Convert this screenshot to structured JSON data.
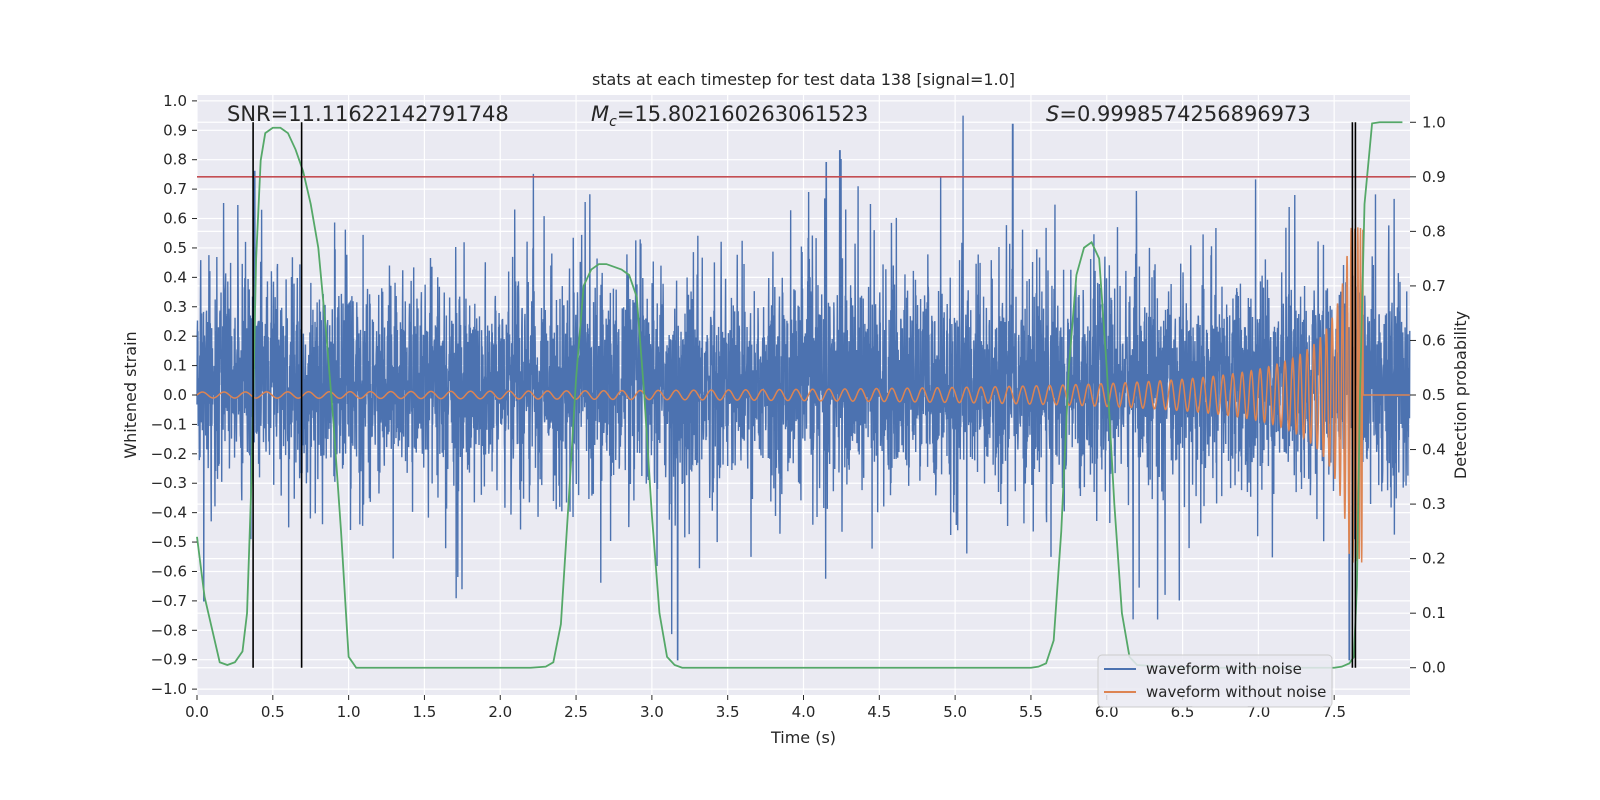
{
  "chart_data": {
    "type": "line",
    "title": "stats at each timestep for test data 138 [signal=1.0]",
    "xlabel": "Time (s)",
    "ylabel": "Whitened strain",
    "y2label": "Detection probability",
    "xlim": [
      0.0,
      8.0
    ],
    "ylim": [
      -1.02,
      1.02
    ],
    "y2lim": [
      -0.05,
      1.05
    ],
    "xticks": [
      0.0,
      0.5,
      1.0,
      1.5,
      2.0,
      2.5,
      3.0,
      3.5,
      4.0,
      4.5,
      5.0,
      5.5,
      6.0,
      6.5,
      7.0,
      7.5
    ],
    "xtick_labels": [
      "0.0",
      "0.5",
      "1.0",
      "1.5",
      "2.0",
      "2.5",
      "3.0",
      "3.5",
      "4.0",
      "4.5",
      "5.0",
      "5.5",
      "6.0",
      "6.5",
      "7.0",
      "7.5"
    ],
    "yticks": [
      -1.0,
      -0.9,
      -0.8,
      -0.7,
      -0.6,
      -0.5,
      -0.4,
      -0.3,
      -0.2,
      -0.1,
      0.0,
      0.1,
      0.2,
      0.3,
      0.4,
      0.5,
      0.6,
      0.7,
      0.8,
      0.9,
      1.0
    ],
    "ytick_labels": [
      "−1.0",
      "−0.9",
      "−0.8",
      "−0.7",
      "−0.6",
      "−0.5",
      "−0.4",
      "−0.3",
      "−0.2",
      "−0.1",
      "0.0",
      "0.1",
      "0.2",
      "0.3",
      "0.4",
      "0.5",
      "0.6",
      "0.7",
      "0.8",
      "0.9",
      "1.0"
    ],
    "y2ticks": [
      0.0,
      0.1,
      0.2,
      0.3,
      0.4,
      0.5,
      0.6,
      0.7,
      0.8,
      0.9,
      1.0
    ],
    "y2tick_labels": [
      "0.0",
      "0.1",
      "0.2",
      "0.3",
      "0.4",
      "0.5",
      "0.6",
      "0.7",
      "0.8",
      "0.9",
      "1.0"
    ],
    "annotations": {
      "snr": "SNR=11.11622142791748",
      "mc_symbol": "M",
      "mc_sub": "c",
      "mc_value": "=15.802160263061523",
      "s_symbol": "S",
      "s_value": "=0.9998574256896973"
    },
    "legend": {
      "position": "lower-right",
      "entries": [
        "waveform with noise",
        "waveform without noise"
      ]
    },
    "threshold_y2": 0.9,
    "vertical_markers_x": [
      0.37,
      0.69,
      7.62,
      7.64
    ],
    "noise_envelope": {
      "name": "waveform with noise",
      "x_range": [
        0.0,
        8.0
      ],
      "core_band": [
        -0.35,
        0.45
      ],
      "notable_peaks": [
        {
          "x": 0.38,
          "y": 0.76
        },
        {
          "x": 4.15,
          "y": 0.79
        },
        {
          "x": 4.24,
          "y": 0.83
        },
        {
          "x": 5.38,
          "y": 0.92
        },
        {
          "x": 3.17,
          "y": -0.9
        },
        {
          "x": 7.6,
          "y": -0.9
        }
      ]
    },
    "clean_waveform": {
      "name": "waveform without noise",
      "start_amplitude": 0.01,
      "peak_amplitude": 0.57,
      "merger_time": 7.69,
      "start_frequency_hz": 7.0,
      "end_frequency_hz": 60.0
    },
    "detection_probability": {
      "name": "detection probability",
      "x": [
        0.0,
        0.05,
        0.1,
        0.15,
        0.2,
        0.25,
        0.3,
        0.33,
        0.36,
        0.39,
        0.42,
        0.45,
        0.5,
        0.55,
        0.6,
        0.65,
        0.7,
        0.75,
        0.8,
        0.85,
        0.9,
        0.95,
        1.0,
        1.05,
        1.1,
        1.5,
        2.0,
        2.2,
        2.3,
        2.35,
        2.4,
        2.45,
        2.5,
        2.55,
        2.6,
        2.65,
        2.7,
        2.75,
        2.8,
        2.85,
        2.9,
        2.95,
        3.0,
        3.05,
        3.1,
        3.15,
        3.2,
        3.5,
        4.0,
        4.5,
        5.0,
        5.5,
        5.55,
        5.6,
        5.65,
        5.7,
        5.75,
        5.8,
        5.85,
        5.9,
        5.95,
        6.0,
        6.05,
        6.1,
        6.15,
        6.2,
        6.5,
        7.0,
        7.3,
        7.45,
        7.5,
        7.55,
        7.6,
        7.63,
        7.65,
        7.67,
        7.7,
        7.75,
        7.8,
        7.85,
        7.9,
        7.95
      ],
      "y": [
        0.24,
        0.13,
        0.07,
        0.01,
        0.005,
        0.01,
        0.03,
        0.1,
        0.35,
        0.75,
        0.93,
        0.98,
        0.99,
        0.99,
        0.98,
        0.95,
        0.91,
        0.85,
        0.77,
        0.62,
        0.45,
        0.25,
        0.02,
        0.0,
        0.0,
        0.0,
        0.0,
        0.0,
        0.002,
        0.01,
        0.08,
        0.3,
        0.53,
        0.7,
        0.73,
        0.74,
        0.74,
        0.735,
        0.73,
        0.72,
        0.68,
        0.5,
        0.28,
        0.1,
        0.02,
        0.005,
        0.0,
        0.0,
        0.0,
        0.0,
        0.0,
        0.0,
        0.002,
        0.008,
        0.05,
        0.25,
        0.55,
        0.72,
        0.77,
        0.78,
        0.75,
        0.55,
        0.3,
        0.1,
        0.02,
        0.005,
        0.0,
        0.0,
        0.0,
        0.0,
        0.0,
        0.002,
        0.008,
        0.02,
        0.15,
        0.5,
        0.85,
        0.998,
        1.0,
        1.0,
        1.0,
        1.0
      ]
    },
    "colors": {
      "noise": "#4c72b0",
      "clean": "#dd8452",
      "probability": "#55a868",
      "threshold": "#c44e52",
      "markers": "#000000",
      "axes_bg": "#eaeaf2",
      "grid": "#ffffff"
    }
  }
}
